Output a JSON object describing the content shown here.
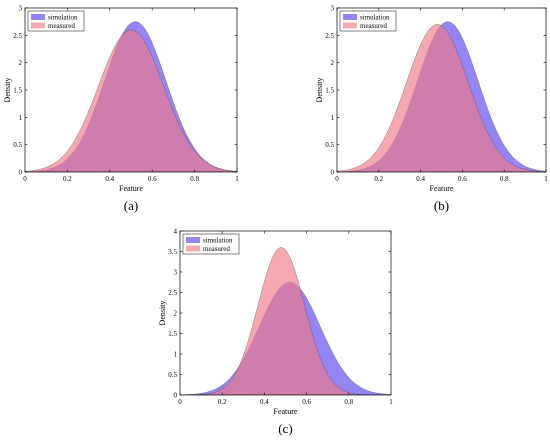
{
  "colors": {
    "simulation": "#6f5cf0",
    "measured": "#f07a86",
    "overlap": "#c41e7e"
  },
  "chart_data": [
    {
      "type": "area",
      "panel_label": "(a)",
      "xlabel": "Feature",
      "ylabel": "Density",
      "xlim": [
        0,
        1
      ],
      "ylim": [
        0,
        3
      ],
      "xticks": [
        "0",
        "0.2",
        "0.4",
        "0.6",
        "0.8",
        "1"
      ],
      "yticks": [
        "0",
        "0.5",
        "1",
        "1.5",
        "2",
        "2.5",
        "3"
      ],
      "legend_position": "top-left",
      "series": [
        {
          "name": "simulation",
          "mean": 0.52,
          "peak": 2.75
        },
        {
          "name": "measured",
          "mean": 0.5,
          "peak": 2.6
        }
      ]
    },
    {
      "type": "area",
      "panel_label": "(b)",
      "xlabel": "Feature",
      "ylabel": "Density",
      "xlim": [
        0,
        1
      ],
      "ylim": [
        0,
        3
      ],
      "xticks": [
        "0",
        "0.2",
        "0.4",
        "0.6",
        "0.8",
        "1"
      ],
      "yticks": [
        "0",
        "0.5",
        "1",
        "1.5",
        "2",
        "2.5",
        "3"
      ],
      "legend_position": "top-left",
      "series": [
        {
          "name": "simulation",
          "mean": 0.53,
          "peak": 2.75
        },
        {
          "name": "measured",
          "mean": 0.48,
          "peak": 2.7
        }
      ]
    },
    {
      "type": "area",
      "panel_label": "(c)",
      "xlabel": "Feature",
      "ylabel": "Density",
      "xlim": [
        0,
        1
      ],
      "ylim": [
        0,
        4
      ],
      "xticks": [
        "0",
        "0.2",
        "0.4",
        "0.6",
        "0.8",
        "1"
      ],
      "yticks": [
        "0",
        "0.5",
        "1",
        "1.5",
        "2",
        "2.5",
        "3",
        "3.5",
        "4"
      ],
      "legend_position": "top-left",
      "series": [
        {
          "name": "simulation",
          "mean": 0.52,
          "peak": 2.75
        },
        {
          "name": "measured",
          "mean": 0.48,
          "peak": 3.6
        }
      ]
    }
  ]
}
